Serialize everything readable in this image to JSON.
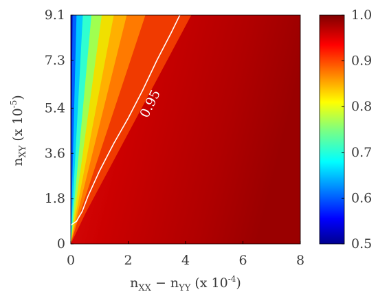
{
  "chart_data": {
    "type": "heatmap",
    "colormap": "jet",
    "xlim": [
      0,
      8
    ],
    "ylim": [
      0,
      9.1
    ],
    "x_ticks": [
      "0",
      "2",
      "4",
      "6",
      "8"
    ],
    "y_ticks": [
      "0",
      "1.8",
      "3.6",
      "5.4",
      "7.3",
      "9.1"
    ],
    "x_tick_values": [
      0,
      2,
      4,
      6,
      8
    ],
    "y_tick_values": [
      0,
      1.8,
      3.6,
      5.4,
      7.3,
      9.1
    ],
    "xlabel": {
      "n_main": "n",
      "xx_sub": "XX",
      "minus": " − ",
      "n2_main": "n",
      "yy_sub": "YY",
      "scale_pre": " (x 10",
      "scale_exp": "-4",
      "scale_post": ")"
    },
    "ylabel": {
      "n_main": "n",
      "xy_sub": "XY",
      "scale_pre": " (x 10",
      "scale_exp": "-5",
      "scale_post": ")"
    },
    "colorbar": {
      "range": [
        0.5,
        1.0
      ],
      "ticks": [
        "0.5",
        "0.6",
        "0.7",
        "0.8",
        "0.9",
        "1.0"
      ],
      "tick_values": [
        0.5,
        0.6,
        0.7,
        0.8,
        0.9,
        1.0
      ]
    },
    "contour": {
      "level": 0.95,
      "label": "0.95",
      "label_at": [
        2.9,
        5.5
      ],
      "points": [
        [
          0,
          0.75
        ],
        [
          0.2,
          0.9
        ],
        [
          0.4,
          1.3
        ],
        [
          0.6,
          1.9
        ],
        [
          1.0,
          2.9
        ],
        [
          1.5,
          4.0
        ],
        [
          2.0,
          5.0
        ],
        [
          2.5,
          6.1
        ],
        [
          3.0,
          7.3
        ],
        [
          3.5,
          8.4
        ],
        [
          3.8,
          9.1
        ]
      ]
    }
  }
}
